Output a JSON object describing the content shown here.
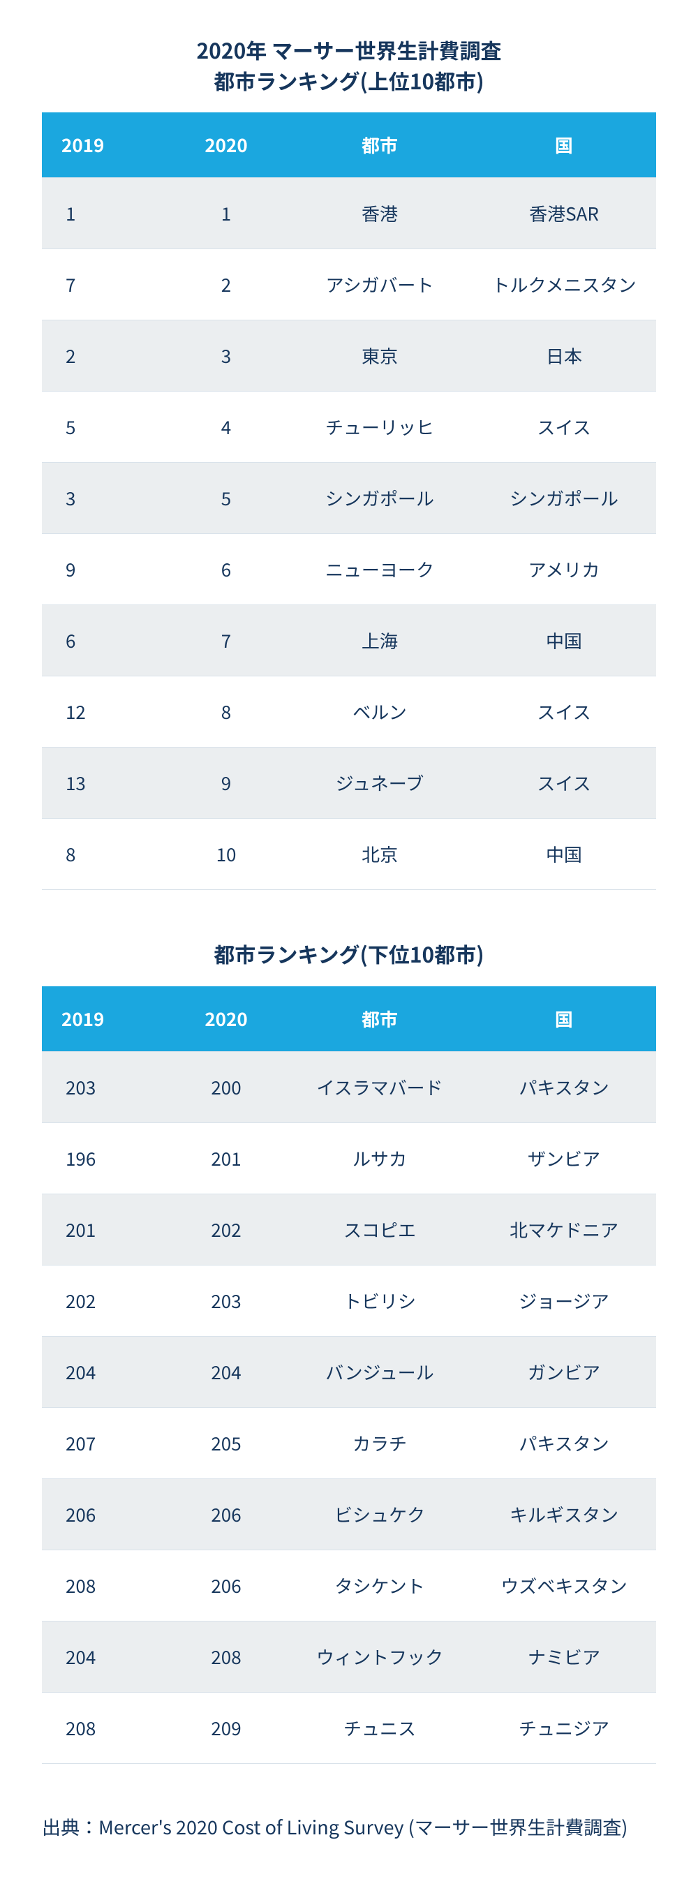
{
  "colors": {
    "header_bg": "#1ba7df",
    "header_text": "#ffffff",
    "row_odd_bg": "#ebeef0",
    "row_even_bg": "#ffffff",
    "text": "#16365c",
    "border": "#d9e2ea"
  },
  "tables": [
    {
      "title": "2020年 マーサー世界生計費調査\n都市ランキング(上位10都市)",
      "columns": [
        "2019",
        "2020",
        "都市",
        "国"
      ],
      "rows": [
        [
          "1",
          "1",
          "香港",
          "香港SAR"
        ],
        [
          "7",
          "2",
          "アシガバート",
          "トルクメニスタン"
        ],
        [
          "2",
          "3",
          "東京",
          "日本"
        ],
        [
          "5",
          "4",
          "チューリッヒ",
          "スイス"
        ],
        [
          "3",
          "5",
          "シンガポール",
          "シンガポール"
        ],
        [
          "9",
          "6",
          "ニューヨーク",
          "アメリカ"
        ],
        [
          "6",
          "7",
          "上海",
          "中国"
        ],
        [
          "12",
          "8",
          "ベルン",
          "スイス"
        ],
        [
          "13",
          "9",
          "ジュネーブ",
          "スイス"
        ],
        [
          "8",
          "10",
          "北京",
          "中国"
        ]
      ]
    },
    {
      "title": "都市ランキング(下位10都市)",
      "columns": [
        "2019",
        "2020",
        "都市",
        "国"
      ],
      "rows": [
        [
          "203",
          "200",
          "イスラマバード",
          "パキスタン"
        ],
        [
          "196",
          "201",
          "ルサカ",
          "ザンビア"
        ],
        [
          "201",
          "202",
          "スコピエ",
          "北マケドニア"
        ],
        [
          "202",
          "203",
          "トビリシ",
          "ジョージア"
        ],
        [
          "204",
          "204",
          "バンジュール",
          "ガンビア"
        ],
        [
          "207",
          "205",
          "カラチ",
          "パキスタン"
        ],
        [
          "206",
          "206",
          "ビシュケク",
          "キルギスタン"
        ],
        [
          "208",
          "206",
          "タシケント",
          "ウズベキスタン"
        ],
        [
          "204",
          "208",
          "ウィントフック",
          "ナミビア"
        ],
        [
          "208",
          "209",
          "チュニス",
          "チュニジア"
        ]
      ]
    }
  ],
  "source": "出典：Mercer's 2020 Cost of Living Survey (マーサー世界生計費調査)"
}
